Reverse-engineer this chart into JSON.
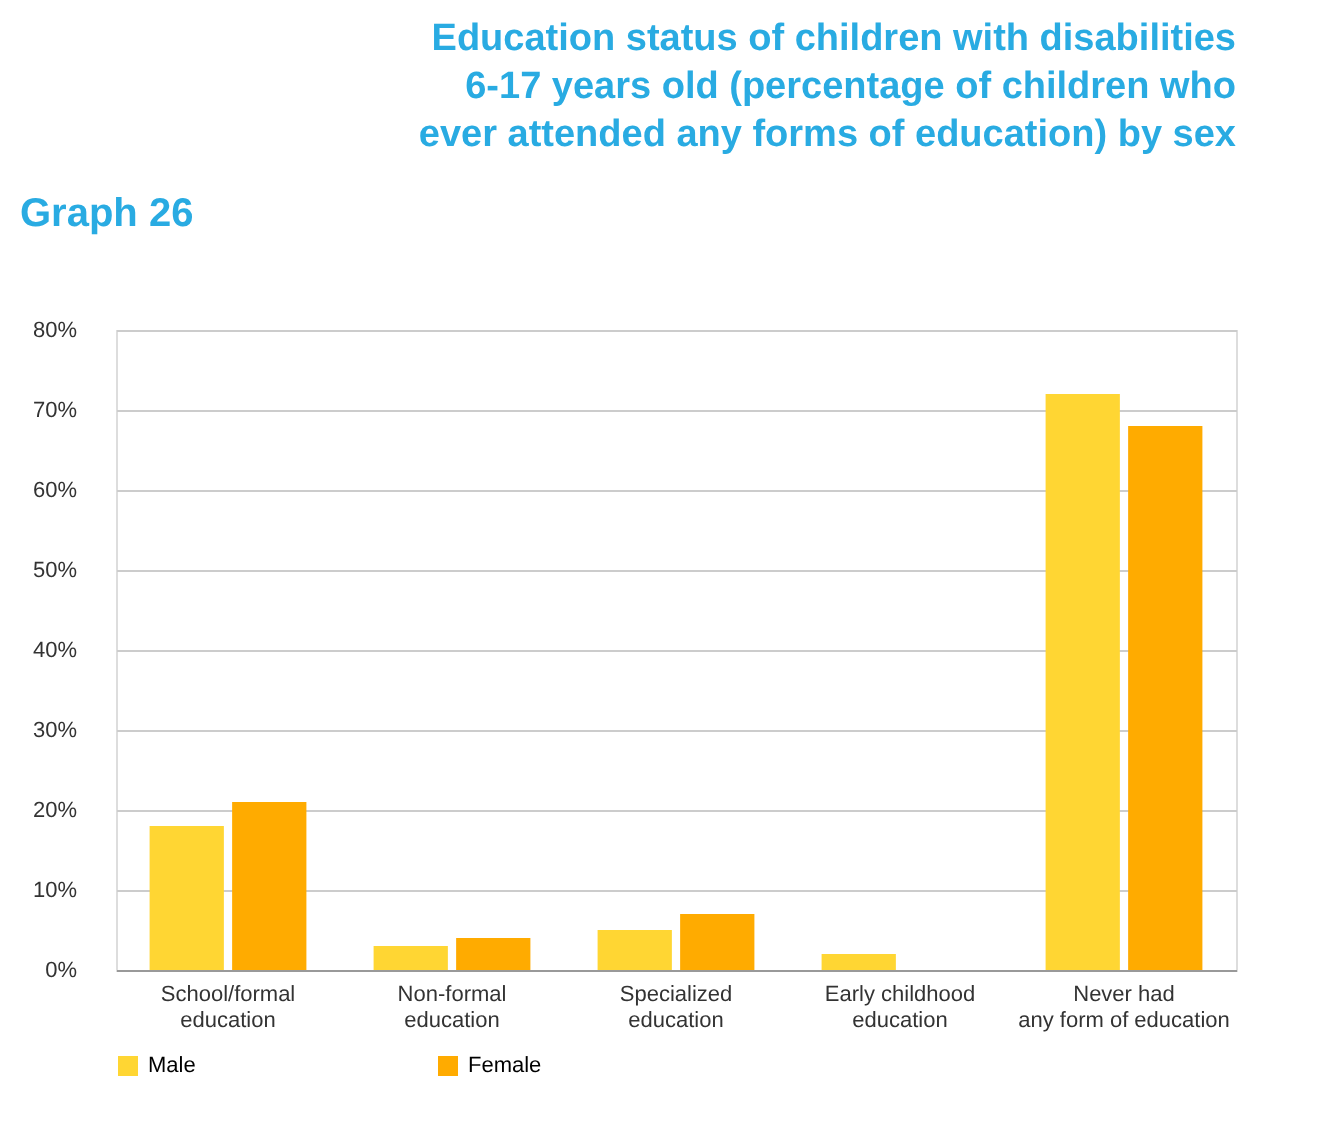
{
  "chart_data": {
    "type": "bar",
    "title": "Education status of children with disabilities 6-17 years old (percentage of children who ever attended any forms of education) by sex",
    "annotations": [
      "Graph 26"
    ],
    "categories": [
      "School/formal\neducation",
      "Non-formal\neducation",
      "Specialized\neducation",
      "Early childhood\neducation",
      "Never had\nany form of education"
    ],
    "series": [
      {
        "name": "Male",
        "color": "#ffd633",
        "values": [
          18,
          3,
          5,
          2,
          72
        ]
      },
      {
        "name": "Female",
        "color": "#ffab00",
        "values": [
          21,
          4,
          7,
          0,
          68
        ]
      }
    ],
    "ylim": [
      0,
      80
    ],
    "yticks": [
      {
        "value": 0,
        "label": "0%"
      },
      {
        "value": 10,
        "label": "10%"
      },
      {
        "value": 20,
        "label": "20%"
      },
      {
        "value": 30,
        "label": "30%"
      },
      {
        "value": 40,
        "label": "40%"
      },
      {
        "value": 50,
        "label": "50%"
      },
      {
        "value": 60,
        "label": "60%"
      },
      {
        "value": 70,
        "label": "70%"
      },
      {
        "value": 80,
        "label": "80%"
      }
    ],
    "grid": "y",
    "legend": "bottom"
  }
}
